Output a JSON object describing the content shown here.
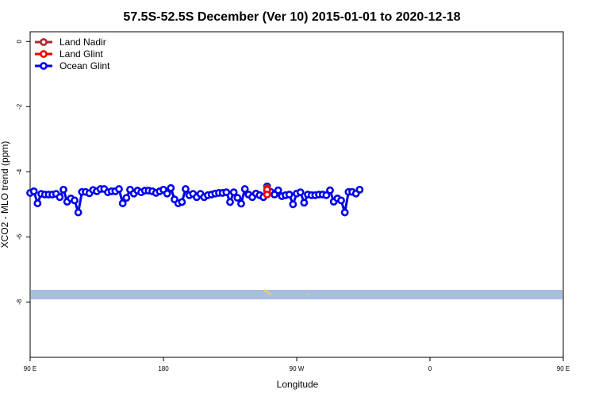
{
  "chart_data": {
    "type": "line",
    "title": "57.5S-52.5S December (Ver 10)   2015-01-01 to 2020-12-18",
    "xlabel": "Longitude",
    "ylabel": "XCO2 - MLO trend (ppm)",
    "xlim": [
      90,
      450
    ],
    "ylim": [
      -9.7,
      0.3
    ],
    "xticks": [
      {
        "value": 90,
        "label": "90 E"
      },
      {
        "value": 180,
        "label": "180"
      },
      {
        "value": 270,
        "label": "90 W"
      },
      {
        "value": 360,
        "label": "0"
      },
      {
        "value": 450,
        "label": "90 E"
      },
      {
        "value": 540,
        "label": "180"
      }
    ],
    "yticks": [
      0,
      -2,
      -4,
      -6,
      -8
    ],
    "legend_position": "top-left",
    "series": [
      {
        "name": "Land Nadir",
        "color": "#a52a2a",
        "points": [
          [
            250,
            -4.5
          ],
          [
            250,
            -4.62
          ]
        ]
      },
      {
        "name": "Land Glint",
        "color": "#ee0000",
        "points": [
          [
            250,
            -4.55
          ],
          [
            250,
            -4.7
          ]
        ]
      },
      {
        "name": "Ocean Glint",
        "color": "#0000ee",
        "points": [
          [
            90,
            -4.65
          ],
          [
            92.5,
            -4.6
          ],
          [
            95,
            -4.97
          ],
          [
            97.5,
            -4.68
          ],
          [
            100,
            -4.7
          ],
          [
            102.5,
            -4.7
          ],
          [
            105,
            -4.7
          ],
          [
            107.5,
            -4.68
          ],
          [
            110,
            -4.78
          ],
          [
            112.5,
            -4.55
          ],
          [
            115,
            -4.92
          ],
          [
            117.5,
            -4.82
          ],
          [
            120,
            -4.88
          ],
          [
            122.5,
            -5.25
          ],
          [
            125,
            -4.62
          ],
          [
            127.5,
            -4.62
          ],
          [
            130,
            -4.66
          ],
          [
            132.5,
            -4.56
          ],
          [
            135,
            -4.6
          ],
          [
            137.5,
            -4.53
          ],
          [
            140,
            -4.53
          ],
          [
            142.5,
            -4.63
          ],
          [
            145,
            -4.6
          ],
          [
            147.5,
            -4.6
          ],
          [
            150,
            -4.53
          ],
          [
            152.5,
            -4.97
          ],
          [
            155,
            -4.8
          ],
          [
            157.5,
            -4.55
          ],
          [
            160,
            -4.67
          ],
          [
            162.5,
            -4.58
          ],
          [
            165,
            -4.63
          ],
          [
            167.5,
            -4.58
          ],
          [
            170,
            -4.58
          ],
          [
            172.5,
            -4.6
          ],
          [
            175,
            -4.65
          ],
          [
            177.5,
            -4.6
          ],
          [
            180,
            -4.55
          ],
          [
            182.5,
            -4.67
          ],
          [
            185,
            -4.5
          ],
          [
            187.5,
            -4.85
          ],
          [
            190,
            -4.97
          ],
          [
            192.5,
            -4.93
          ],
          [
            195,
            -4.53
          ],
          [
            197.5,
            -4.72
          ],
          [
            200,
            -4.68
          ],
          [
            202.5,
            -4.78
          ],
          [
            205,
            -4.68
          ],
          [
            207.5,
            -4.78
          ],
          [
            210,
            -4.72
          ],
          [
            212.5,
            -4.7
          ],
          [
            215,
            -4.67
          ],
          [
            217.5,
            -4.65
          ],
          [
            220,
            -4.65
          ],
          [
            222.5,
            -4.63
          ],
          [
            225,
            -4.93
          ],
          [
            227.5,
            -4.63
          ],
          [
            230,
            -4.8
          ],
          [
            232.5,
            -4.98
          ],
          [
            235,
            -4.53
          ],
          [
            237.5,
            -4.7
          ],
          [
            240,
            -4.78
          ],
          [
            242.5,
            -4.67
          ],
          [
            245,
            -4.72
          ],
          [
            247.5,
            -4.78
          ],
          [
            250,
            -4.45
          ],
          [
            252.5,
            -4.62
          ],
          [
            255,
            -4.7
          ],
          [
            257.5,
            -4.57
          ],
          [
            260,
            -4.75
          ],
          [
            262.5,
            -4.72
          ],
          [
            265,
            -4.7
          ],
          [
            267.5,
            -5.0
          ],
          [
            270,
            -4.67
          ],
          [
            272.5,
            -4.63
          ],
          [
            275,
            -4.95
          ],
          [
            277.5,
            -4.7
          ],
          [
            280,
            -4.72
          ],
          [
            282.5,
            -4.72
          ],
          [
            285,
            -4.7
          ],
          [
            287.5,
            -4.7
          ],
          [
            290,
            -4.72
          ],
          [
            292.5,
            -4.57
          ],
          [
            295,
            -4.92
          ],
          [
            297.5,
            -4.82
          ],
          [
            300,
            -4.88
          ],
          [
            302.5,
            -5.25
          ],
          [
            305,
            -4.62
          ],
          [
            307.5,
            -4.62
          ],
          [
            310,
            -4.67
          ],
          [
            312.5,
            -4.55
          ]
        ]
      }
    ]
  }
}
